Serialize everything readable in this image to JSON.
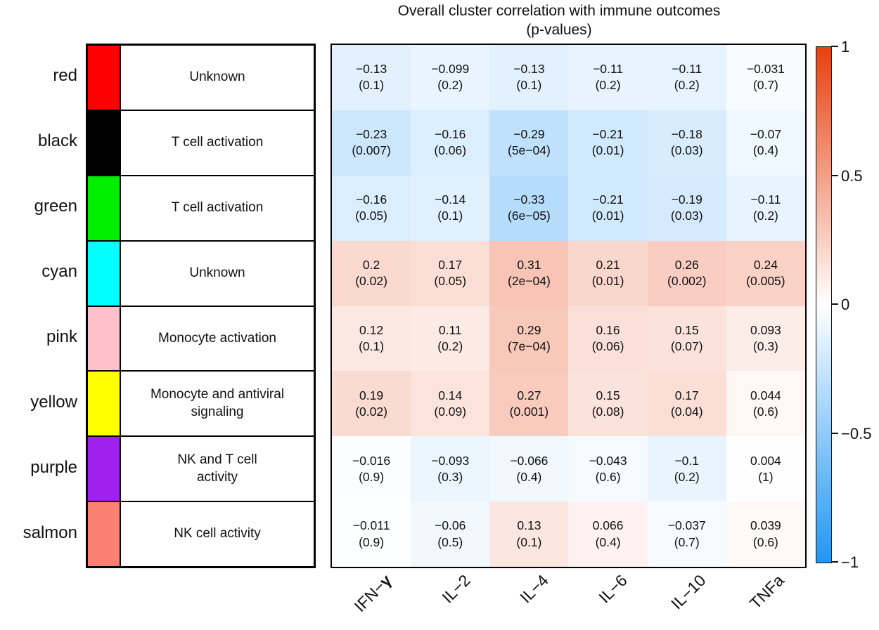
{
  "title": {
    "line1": "Overall cluster correlation with immune outcomes",
    "line2": "(p-values)"
  },
  "colors": {
    "heat_positive_end": "#E7400F",
    "heat_negative_end": "#2196F3",
    "border": "#000000",
    "background": "#FFFFFF"
  },
  "chart_data": {
    "type": "heatmap",
    "value_range": [
      -1,
      1
    ],
    "columns": [
      "IFN−γ",
      "IL−2",
      "IL−4",
      "IL−6",
      "IL−10",
      "TNFa"
    ],
    "rows": [
      {
        "label": "red",
        "swatch_color": "#FF0000",
        "annotation": "Unknown",
        "values": [
          -0.13,
          -0.099,
          -0.13,
          -0.11,
          -0.11,
          -0.031
        ],
        "p_values": [
          "0.1",
          "0.2",
          "0.1",
          "0.2",
          "0.2",
          "0.7"
        ]
      },
      {
        "label": "black",
        "swatch_color": "#000000",
        "annotation": "T cell activation",
        "values": [
          -0.23,
          -0.16,
          -0.29,
          -0.21,
          -0.18,
          -0.07
        ],
        "p_values": [
          "0.007",
          "0.06",
          "5e−04",
          "0.01",
          "0.03",
          "0.4"
        ]
      },
      {
        "label": "green",
        "swatch_color": "#00EE00",
        "annotation": "T cell activation",
        "values": [
          -0.16,
          -0.14,
          -0.33,
          -0.21,
          -0.19,
          -0.11
        ],
        "p_values": [
          "0.05",
          "0.1",
          "6e−05",
          "0.01",
          "0.03",
          "0.2"
        ]
      },
      {
        "label": "cyan",
        "swatch_color": "#00FFFF",
        "annotation": "Unknown",
        "values": [
          0.2,
          0.17,
          0.31,
          0.21,
          0.26,
          0.24
        ],
        "p_values": [
          "0.02",
          "0.05",
          "2e−04",
          "0.01",
          "0.002",
          "0.005"
        ]
      },
      {
        "label": "pink",
        "swatch_color": "#FFC0CB",
        "annotation": "Monocyte activation",
        "values": [
          0.12,
          0.11,
          0.29,
          0.16,
          0.15,
          0.093
        ],
        "p_values": [
          "0.1",
          "0.2",
          "7e−04",
          "0.06",
          "0.07",
          "0.3"
        ]
      },
      {
        "label": "yellow",
        "swatch_color": "#FFFF00",
        "annotation": "Monocyte and antiviral\nsignaling",
        "values": [
          0.19,
          0.14,
          0.27,
          0.15,
          0.17,
          0.044
        ],
        "p_values": [
          "0.02",
          "0.09",
          "0.001",
          "0.08",
          "0.04",
          "0.6"
        ]
      },
      {
        "label": "purple",
        "swatch_color": "#A020F0",
        "annotation": "NK and T cell\nactivity",
        "values": [
          -0.016,
          -0.093,
          -0.066,
          -0.043,
          -0.1,
          0.004
        ],
        "p_values": [
          "0.9",
          "0.3",
          "0.4",
          "0.6",
          "0.2",
          "1"
        ]
      },
      {
        "label": "salmon",
        "swatch_color": "#FA8072",
        "annotation": "NK cell activity",
        "values": [
          -0.011,
          -0.06,
          0.13,
          0.066,
          -0.037,
          0.039
        ],
        "p_values": [
          "0.9",
          "0.5",
          "0.1",
          "0.4",
          "0.7",
          "0.6"
        ]
      }
    ],
    "colorbar": {
      "tick_labels": [
        "1",
        "0.5",
        "0",
        "−0.5",
        "−1"
      ],
      "max": 1,
      "min": -1,
      "position": "right"
    },
    "legend_position": "right",
    "grid": false
  }
}
